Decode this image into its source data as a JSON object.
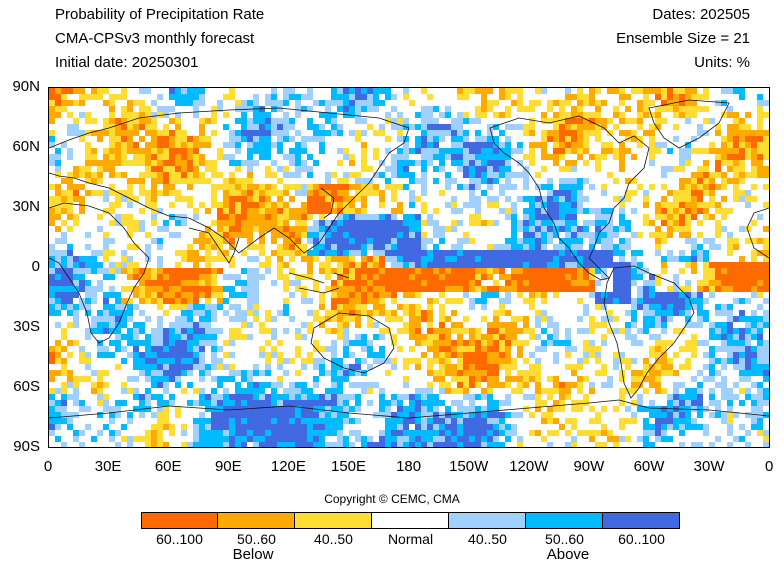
{
  "header": {
    "title": "Probability of Precipitation Rate",
    "subtitle": "CMA-CPSv3 monthly forecast",
    "initial_date": "Initial date: 20250301",
    "dates": "Dates: 202505",
    "ensemble": "Ensemble Size = 21",
    "units": "Units: %"
  },
  "axes": {
    "lat_labels": [
      "90N",
      "60N",
      "30N",
      "0",
      "30S",
      "60S",
      "90S"
    ],
    "lon_labels": [
      "0",
      "30E",
      "60E",
      "90E",
      "120E",
      "150E",
      "180",
      "150W",
      "120W",
      "90W",
      "60W",
      "30W",
      "0"
    ],
    "lat_range": [
      -90,
      90
    ],
    "lon_range": [
      0,
      360
    ]
  },
  "copyright": "Copyright © CEMC, CMA",
  "colorbar": {
    "categories": [
      {
        "label": "60..100",
        "color": "#ff6a00"
      },
      {
        "label": "50..60",
        "color": "#ffaa00"
      },
      {
        "label": "40..50",
        "color": "#ffdd33"
      },
      {
        "label": "Normal",
        "color": "#ffffff"
      },
      {
        "label": "40..50",
        "color": "#9fd0ff"
      },
      {
        "label": "50..60",
        "color": "#00bbff"
      },
      {
        "label": "60..100",
        "color": "#4169e1"
      }
    ],
    "below_label": "Below",
    "above_label": "Above"
  },
  "map_layers": {
    "coastlines": "black",
    "projection": "equirectangular"
  }
}
